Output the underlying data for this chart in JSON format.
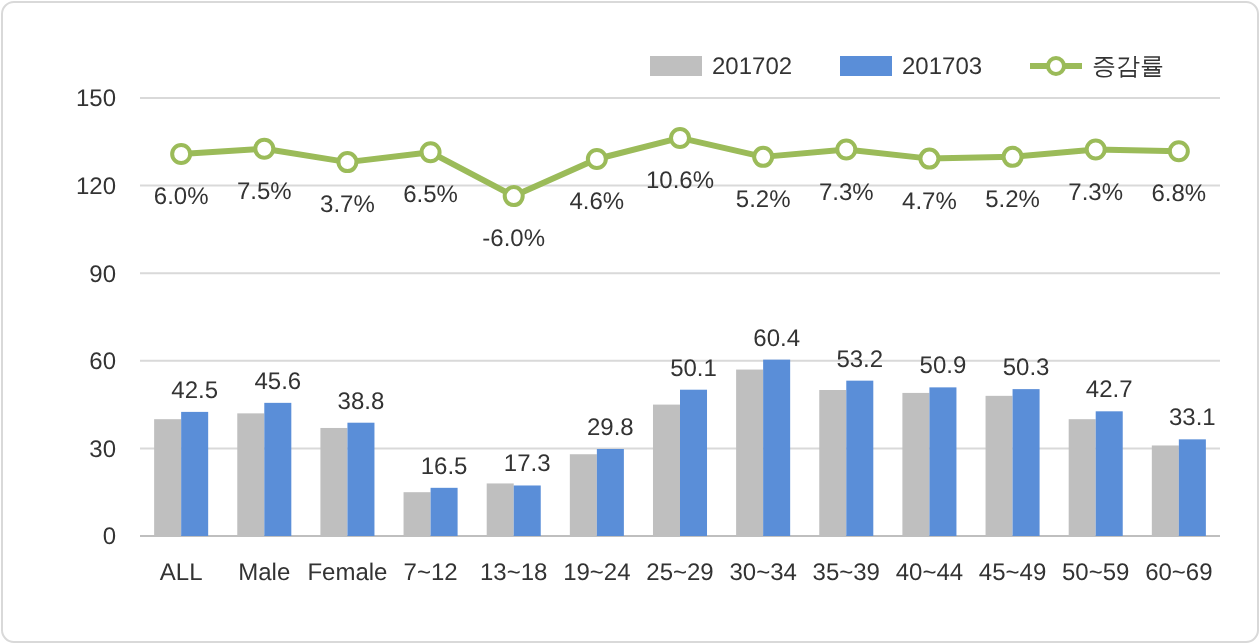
{
  "chart_data": {
    "type": "bar",
    "categories": [
      "ALL",
      "Male",
      "Female",
      "7~12",
      "13~18",
      "19~24",
      "25~29",
      "30~34",
      "35~39",
      "40~44",
      "45~49",
      "50~59",
      "60~69"
    ],
    "series": [
      {
        "name": "201702",
        "color": "#bfbfbf",
        "values": [
          40,
          42,
          37,
          15,
          18,
          28,
          45,
          57,
          50,
          49,
          48,
          40,
          31
        ]
      },
      {
        "name": "201703",
        "color": "#5a8ed8",
        "values": [
          42.5,
          45.6,
          38.8,
          16.5,
          17.3,
          29.8,
          50.1,
          60.4,
          53.2,
          50.9,
          50.3,
          42.7,
          33.1
        ],
        "value_labels": [
          "42.5",
          "45.6",
          "38.8",
          "16.5",
          "17.3",
          "29.8",
          "50.1",
          "60.4",
          "53.2",
          "50.9",
          "50.3",
          "42.7",
          "33.1"
        ]
      },
      {
        "name": "증감률",
        "type": "line",
        "axis": "y2",
        "color": "#9bbb59",
        "values": [
          6.0,
          7.5,
          3.7,
          6.5,
          -6.0,
          4.6,
          10.6,
          5.2,
          7.3,
          4.7,
          5.2,
          7.3,
          6.8
        ],
        "value_labels": [
          "6.0%",
          "7.5%",
          "3.7%",
          "6.5%",
          "-6.0%",
          "4.6%",
          "10.6%",
          "5.2%",
          "7.3%",
          "4.7%",
          "5.2%",
          "7.3%",
          "6.8%"
        ]
      }
    ],
    "ylim": [
      0,
      150
    ],
    "yticks": [
      0,
      30,
      60,
      90,
      120,
      150
    ],
    "y2lim": [
      -103,
      22
    ],
    "tick_labels": "xy",
    "grid": "y",
    "legend": "top right",
    "marker": "circle"
  }
}
